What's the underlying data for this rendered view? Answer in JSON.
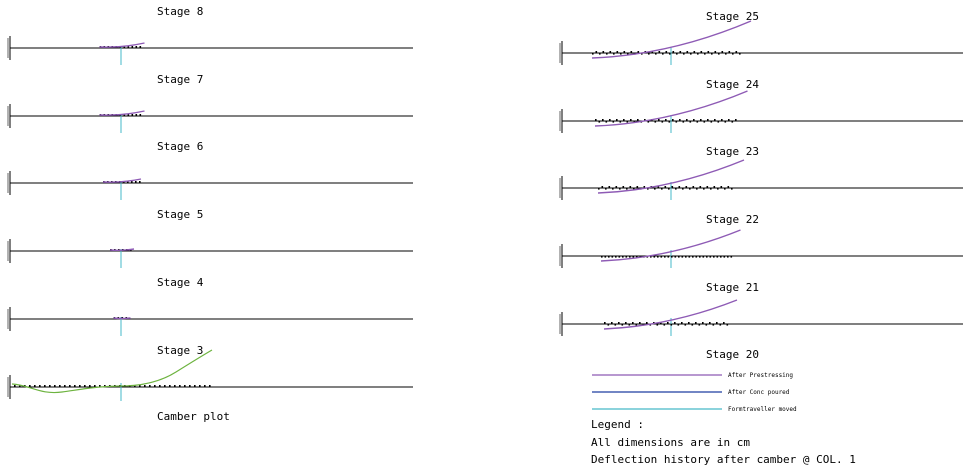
{
  "camber_plot_label": "Camber plot",
  "stage_word": "Stage",
  "legend": {
    "title": "Legend :",
    "items": [
      {
        "label": "After Prestressing",
        "color": "#8e5bb5"
      },
      {
        "label": "After Conc poured",
        "color": "#1f3fa0"
      },
      {
        "label": "Formtraveller moved",
        "color": "#46b9c8"
      }
    ]
  },
  "notes": {
    "units": "All dimensions are in cm",
    "caption": "Deflection history after camber @ COL.  1"
  },
  "colors": {
    "baseline": "#000000",
    "prestress": "#8e5bb5",
    "camber": "#6db33f",
    "column": "#46b9c8",
    "points": "#000000"
  },
  "left_panels": [
    {
      "stage": "8",
      "span_left": 1,
      "span_right": 1,
      "rise": 5
    },
    {
      "stage": "7",
      "span_left": 1,
      "span_right": 1,
      "rise": 5
    },
    {
      "stage": "6",
      "span_left": 1,
      "span_right": 1,
      "rise": 4
    },
    {
      "stage": "5",
      "span_left": 1,
      "span_right": 1,
      "rise": 2
    },
    {
      "stage": "4",
      "span_left": 1,
      "span_right": 1,
      "rise": 1
    },
    {
      "stage": "3",
      "camber": true
    }
  ],
  "right_panels": [
    {
      "stage": "25",
      "rise": 32
    },
    {
      "stage": "24",
      "rise": 30
    },
    {
      "stage": "23",
      "rise": 28
    },
    {
      "stage": "22",
      "rise": 26
    },
    {
      "stage": "21",
      "rise": 24
    },
    {
      "stage": "20",
      "empty": true
    }
  ]
}
